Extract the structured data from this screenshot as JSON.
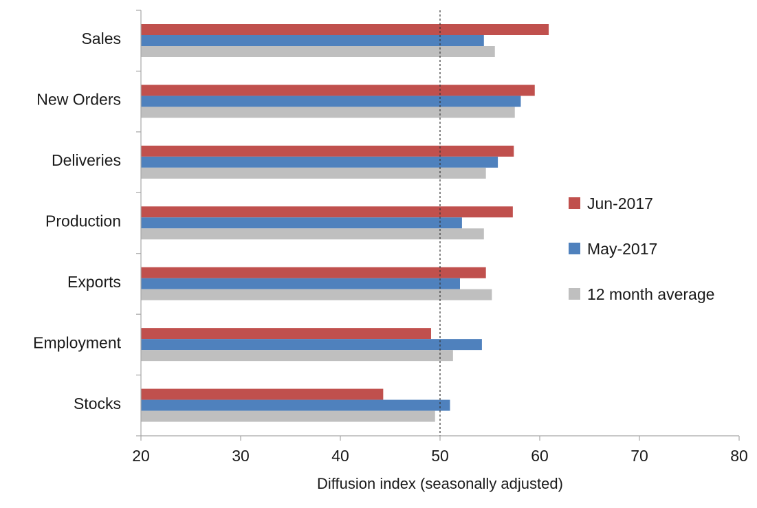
{
  "chart_data": {
    "type": "bar",
    "orientation": "horizontal",
    "categories": [
      "Sales",
      "New Orders",
      "Deliveries",
      "Production",
      "Exports",
      "Employment",
      "Stocks"
    ],
    "series": [
      {
        "name": "Jun-2017",
        "color": "#c0504d",
        "values": [
          60.9,
          59.5,
          57.4,
          57.3,
          54.6,
          49.1,
          44.3
        ]
      },
      {
        "name": "May-2017",
        "color": "#4f81bd",
        "values": [
          54.4,
          58.1,
          55.8,
          52.2,
          52.0,
          54.2,
          51.0
        ]
      },
      {
        "name": "12 month average",
        "color": "#bfbfbf",
        "values": [
          55.5,
          57.5,
          54.6,
          54.4,
          55.2,
          51.3,
          49.5
        ]
      }
    ],
    "xlabel": "Diffusion index (seasonally adjusted)",
    "xlim": [
      20,
      80
    ],
    "xticks": [
      20,
      30,
      40,
      50,
      60,
      70,
      80
    ],
    "reference_line": 50,
    "legend_position": "right",
    "grid": false
  }
}
